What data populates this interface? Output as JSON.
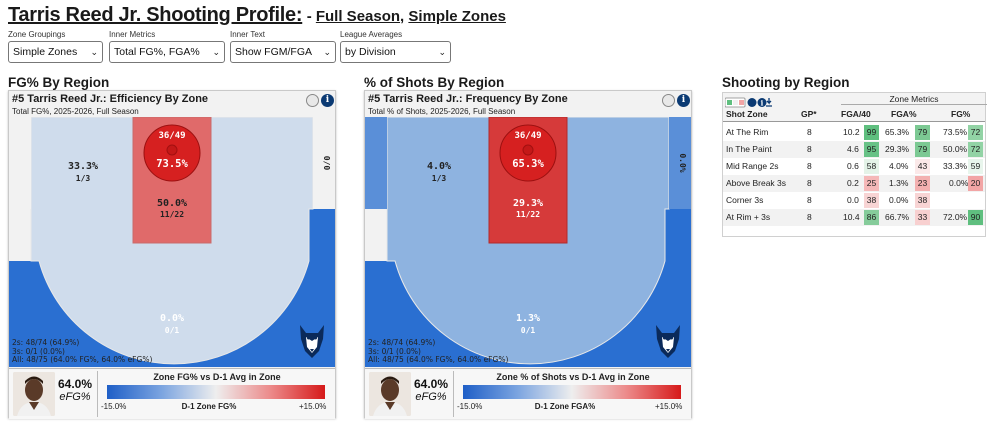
{
  "title": {
    "main": "Tarris Reed Jr. Shooting Profile:",
    "sub_prefix": "- ",
    "sub_a": "Full Season",
    "sub_sep": ", ",
    "sub_b": "Simple Zones"
  },
  "controls": [
    {
      "label": "Zone Groupings",
      "value": "Simple Zones"
    },
    {
      "label": "Inner Metrics",
      "value": "Total FG%, FGA%"
    },
    {
      "label": "Inner Text",
      "value": "Show FGM/FGA"
    },
    {
      "label": "League Averages",
      "value": "by Division"
    }
  ],
  "sections": {
    "left": "FG% By Region",
    "middle": "% of Shots By Region",
    "right": "Shooting by Region"
  },
  "panel_left": {
    "heading": "#5 Tarris Reed Jr.: Efficiency By Zone",
    "subheading": "Total FG%, 2025-2026, Full Season",
    "zones": {
      "rim": {
        "frac": "36/49",
        "pct": "73.5%"
      },
      "paint": {
        "pct": "50.0%",
        "frac": "11/22"
      },
      "mid": {
        "pct": "33.3%",
        "frac": "1/3"
      },
      "corner": {
        "frac": "0/0"
      },
      "three": {
        "pct": "0.0%",
        "frac": "0/1"
      }
    },
    "stats": [
      "2s: 48/74 (64.9%)",
      "3s: 0/1 (0.0%)",
      "All: 48/75 (64.0% FG%, 64.0% eFG%)"
    ],
    "efg_value": "64.0%",
    "efg_label": "eFG%",
    "legend_title": "Zone FG% vs D-1 Avg in Zone",
    "legend_min": "-15.0%",
    "legend_mid": "D-1 Zone FG%",
    "legend_max": "+15.0%"
  },
  "panel_mid": {
    "heading": "#5 Tarris Reed Jr.: Frequency By Zone",
    "subheading": "Total % of Shots, 2025-2026, Full Season",
    "zones": {
      "rim": {
        "frac": "36/49",
        "pct": "65.3%"
      },
      "paint": {
        "pct": "29.3%",
        "frac": "11/22"
      },
      "mid": {
        "pct": "4.0%",
        "frac": "1/3"
      },
      "corner": {
        "frac": "0.0%"
      },
      "three": {
        "pct": "1.3%",
        "frac": "0/1"
      }
    },
    "stats": [
      "2s: 48/74 (64.9%)",
      "3s: 0/1 (0.0%)",
      "All: 48/75 (64.0% FG%, 64.0% eFG%)"
    ],
    "efg_value": "64.0%",
    "efg_label": "eFG%",
    "legend_title": "Zone % of Shots vs D-1 Avg in Zone",
    "legend_min": "-15.0%",
    "legend_mid": "D-1 Zone FGA%",
    "legend_max": "+15.0%"
  },
  "table": {
    "group_header": "Zone Metrics",
    "columns": [
      "Shot Zone",
      "GP*",
      "FGA/40",
      "FGA%",
      "FG%"
    ],
    "rows": [
      {
        "zone": "At The Rim",
        "gp": "8",
        "fga40": "10.2",
        "fga40_r": "99",
        "fgapct": "65.3%",
        "fgapct_r": "79",
        "fgpct": "73.5%",
        "fgpct_r": "72"
      },
      {
        "zone": "In The Paint",
        "gp": "8",
        "fga40": "4.6",
        "fga40_r": "95",
        "fgapct": "29.3%",
        "fgapct_r": "79",
        "fgpct": "50.0%",
        "fgpct_r": "72"
      },
      {
        "zone": "Mid Range 2s",
        "gp": "8",
        "fga40": "0.6",
        "fga40_r": "58",
        "fgapct": "4.0%",
        "fgapct_r": "43",
        "fgpct": "33.3%",
        "fgpct_r": "59"
      },
      {
        "zone": "Above Break 3s",
        "gp": "8",
        "fga40": "0.2",
        "fga40_r": "25",
        "fgapct": "1.3%",
        "fgapct_r": "23",
        "fgpct": "0.0%",
        "fgpct_r": "20"
      },
      {
        "zone": "Corner 3s",
        "gp": "8",
        "fga40": "0.0",
        "fga40_r": "38",
        "fgapct": "0.0%",
        "fgapct_r": "38",
        "fgpct": "",
        "fgpct_r": ""
      },
      {
        "zone": "At Rim + 3s",
        "gp": "8",
        "fga40": "10.4",
        "fga40_r": "86",
        "fgapct": "66.7%",
        "fgapct_r": "33",
        "fgpct": "72.0%",
        "fgpct_r": "90"
      }
    ]
  },
  "colors": {
    "rim_red": "#d62020",
    "paint_red_left": "#e06a6a",
    "paint_red_mid": "#d63a3a",
    "mid_light": "#cfdcec",
    "mid_blue": "#8eb3e0",
    "three_blue": "#2a6fd1",
    "corner_blue": "#5a8fd8",
    "good_green": "#5fbf7f",
    "bad_red": "#f2a5a5"
  }
}
